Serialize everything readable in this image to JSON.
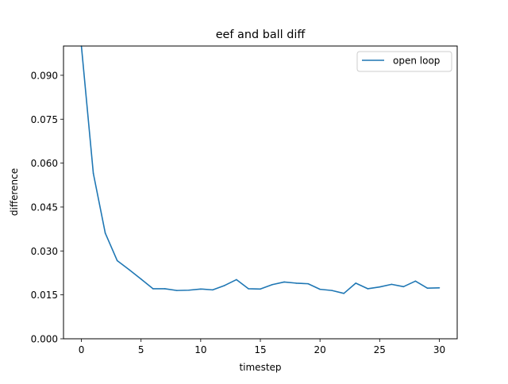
{
  "chart_data": {
    "type": "line",
    "title": "eef and ball diff",
    "xlabel": "timestep",
    "ylabel": "difference",
    "xlim": [
      -1.5,
      31.5
    ],
    "ylim": [
      0.0,
      0.1
    ],
    "xticks": [
      0,
      5,
      10,
      15,
      20,
      25,
      30
    ],
    "xtick_labels": [
      "0",
      "5",
      "10",
      "15",
      "20",
      "25",
      "30"
    ],
    "yticks": [
      0.0,
      0.015,
      0.03,
      0.045,
      0.06,
      0.075,
      0.09
    ],
    "ytick_labels": [
      "0.000",
      "0.015",
      "0.030",
      "0.045",
      "0.060",
      "0.075",
      "0.090"
    ],
    "grid": false,
    "legend_position": "top-right",
    "series": [
      {
        "name": "open loop",
        "color": "#1f77b4",
        "x": [
          0,
          1,
          2,
          3,
          4,
          5,
          6,
          7,
          8,
          9,
          10,
          11,
          12,
          13,
          14,
          15,
          16,
          17,
          18,
          19,
          20,
          21,
          22,
          23,
          24,
          25,
          26,
          27,
          28,
          29,
          30
        ],
        "values": [
          0.1,
          0.0565,
          0.0361,
          0.0267,
          0.0236,
          0.0204,
          0.0171,
          0.0171,
          0.0165,
          0.0166,
          0.017,
          0.0167,
          0.0182,
          0.0202,
          0.0171,
          0.017,
          0.0185,
          0.0194,
          0.019,
          0.0188,
          0.0169,
          0.0165,
          0.0155,
          0.019,
          0.0171,
          0.0177,
          0.0186,
          0.0178,
          0.0197,
          0.0173,
          0.0174
        ]
      }
    ]
  }
}
